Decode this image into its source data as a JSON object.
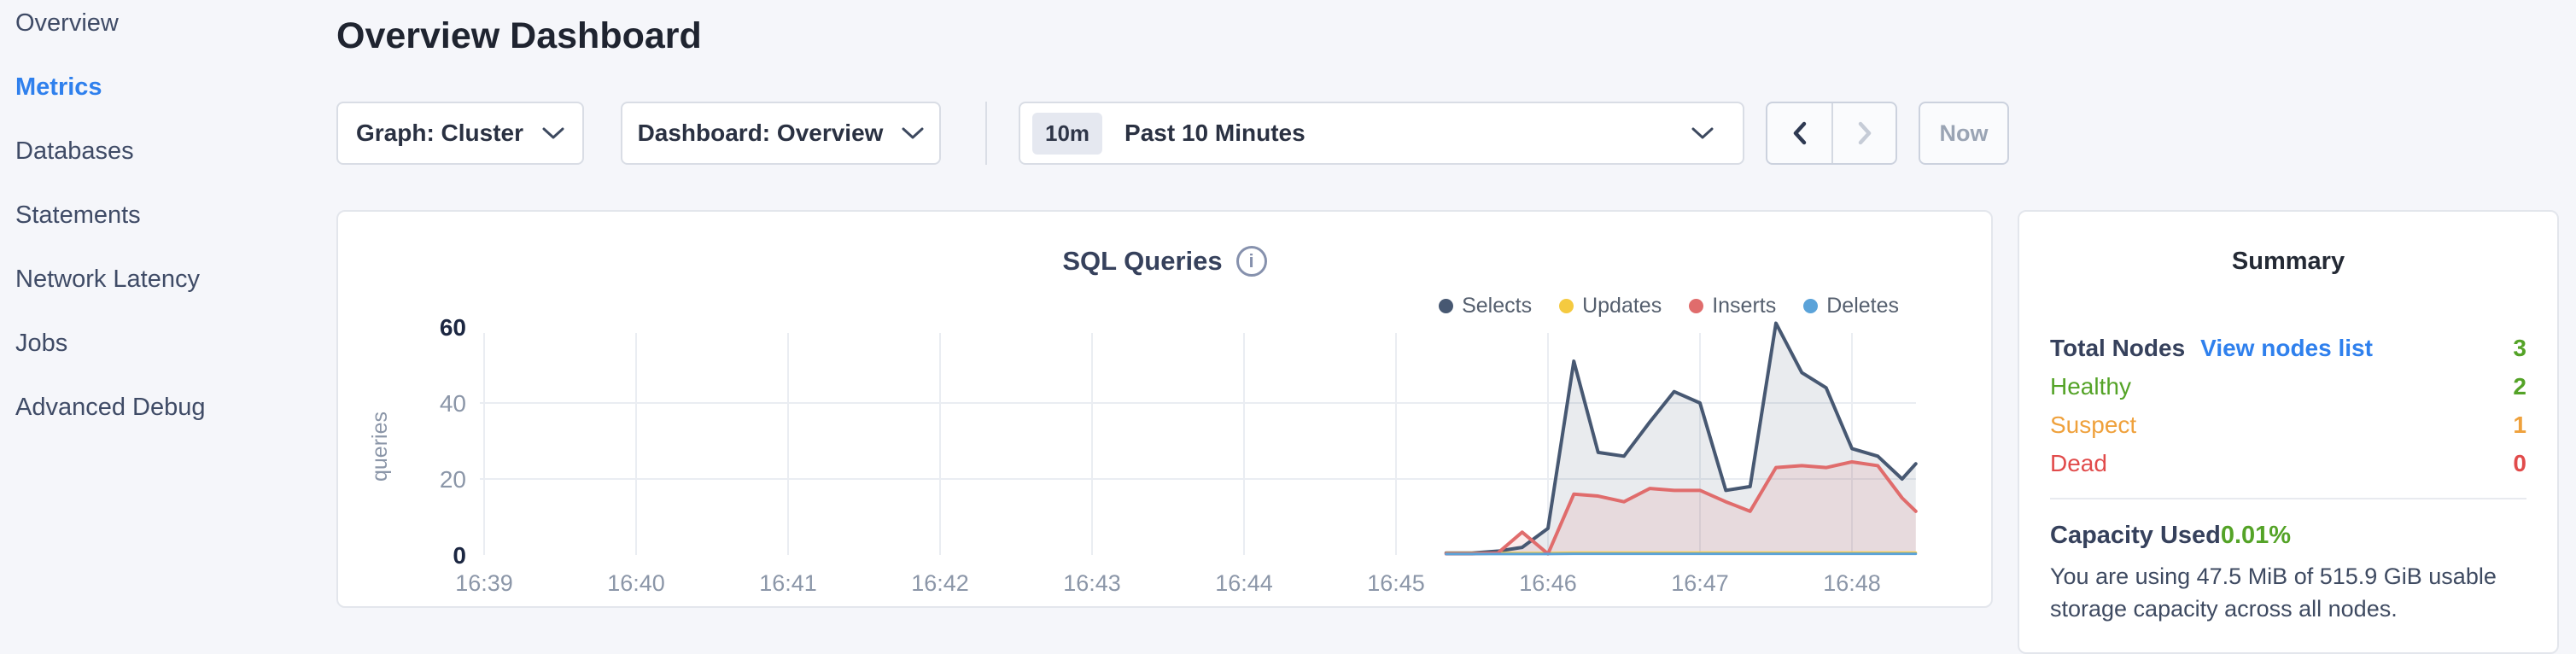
{
  "sidebar": {
    "items": [
      {
        "label": "Overview",
        "active": false
      },
      {
        "label": "Metrics",
        "active": true
      },
      {
        "label": "Databases",
        "active": false
      },
      {
        "label": "Statements",
        "active": false
      },
      {
        "label": "Network Latency",
        "active": false
      },
      {
        "label": "Jobs",
        "active": false
      },
      {
        "label": "Advanced Debug",
        "active": false
      }
    ]
  },
  "header": {
    "title": "Overview Dashboard"
  },
  "controls": {
    "graph_dropdown": {
      "label": "Graph: Cluster"
    },
    "dashboard_dropdown": {
      "label": "Dashboard: Overview"
    },
    "time_window": {
      "badge": "10m",
      "label": "Past 10 Minutes"
    },
    "prev_arrow": "chevron-left",
    "next_arrow": "chevron-right-disabled",
    "now_button": "Now"
  },
  "chart_panel": {
    "title": "SQL Queries",
    "info_icon": "i"
  },
  "chart_data": {
    "type": "area",
    "title": "SQL Queries",
    "ylabel": "queries",
    "ylim": [
      0,
      60
    ],
    "grid": true,
    "legend_position": "top-right",
    "y_ticks": [
      {
        "value": 0,
        "bold": true
      },
      {
        "value": 20,
        "bold": false
      },
      {
        "value": 40,
        "bold": false
      },
      {
        "value": 60,
        "bold": true
      }
    ],
    "x_ticks": [
      "16:39",
      "16:40",
      "16:41",
      "16:42",
      "16:43",
      "16:44",
      "16:45",
      "16:46",
      "16:47",
      "16:48"
    ],
    "x_unit": "minutes after 16:39",
    "x": [
      6.33,
      6.5,
      6.67,
      6.83,
      7,
      7.17,
      7.33,
      7.5,
      7.67,
      7.83,
      8,
      8.17,
      8.33,
      8.5,
      8.67,
      8.83,
      9,
      9.17,
      9.33,
      9.42
    ],
    "series": [
      {
        "name": "Selects",
        "color": "#475872",
        "fill": "rgba(71,88,114,0.12)",
        "values": [
          0.5,
          0.5,
          1,
          2,
          7,
          51,
          27,
          26,
          35,
          43,
          40,
          17,
          18,
          61,
          48,
          44,
          28,
          26,
          20,
          24
        ]
      },
      {
        "name": "Updates",
        "color": "#f5ca40",
        "fill": "rgba(245,202,64,0.10)",
        "values": [
          0.5,
          0.5,
          0.5,
          0.5,
          0.5,
          0.6,
          0.6,
          0.6,
          0.6,
          0.6,
          0.6,
          0.6,
          0.6,
          0.6,
          0.6,
          0.6,
          0.6,
          0.6,
          0.6,
          0.6
        ]
      },
      {
        "name": "Inserts",
        "color": "#e06c6c",
        "fill": "rgba(224,108,108,0.13)",
        "values": [
          0.3,
          0.3,
          0.5,
          6,
          0.3,
          16,
          15.5,
          14,
          17.5,
          17,
          17,
          14,
          11.5,
          23,
          23.5,
          23,
          24.5,
          23.5,
          15,
          11.5
        ]
      },
      {
        "name": "Deletes",
        "color": "#5ba3d9",
        "fill": "rgba(91,163,217,0.10)",
        "values": [
          0.25,
          0.25,
          0.25,
          0.25,
          0.25,
          0.3,
          0.3,
          0.3,
          0.3,
          0.3,
          0.3,
          0.3,
          0.3,
          0.3,
          0.3,
          0.3,
          0.3,
          0.3,
          0.3,
          0.3
        ]
      }
    ]
  },
  "summary_panel": {
    "title": "Summary",
    "rows": [
      {
        "label": "Total Nodes",
        "link": "View nodes list",
        "value": "3",
        "color": "green"
      },
      {
        "label": "Healthy",
        "value": "2",
        "color": "green"
      },
      {
        "label": "Suspect",
        "value": "1",
        "color": "orange"
      },
      {
        "label": "Dead",
        "value": "0",
        "color": "red"
      }
    ],
    "capacity": {
      "label": "Capacity Used",
      "value": "0.01%",
      "description": "You are using 47.5 MiB of 515.9 GiB usable storage capacity across all nodes."
    }
  }
}
